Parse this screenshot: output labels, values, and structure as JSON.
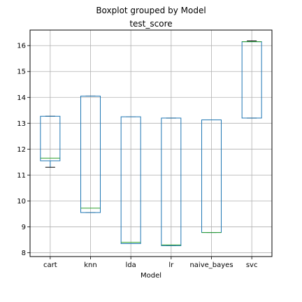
{
  "chart_data": {
    "type": "boxplot",
    "suptitle": "Boxplot grouped by Model",
    "title": "test_score",
    "xlabel": "Model",
    "ylabel": "",
    "ylim": [
      7.85,
      16.6
    ],
    "yticks": [
      8,
      9,
      10,
      11,
      12,
      13,
      14,
      15,
      16
    ],
    "grid": true,
    "colors": {
      "box": "#1f77b4",
      "median": "#2ca02c",
      "whisker": "#000000",
      "grid": "#b0b0b0"
    },
    "categories": [
      "cart",
      "knn",
      "lda",
      "lr",
      "naive_bayes",
      "svc"
    ],
    "boxes": [
      {
        "label": "cart",
        "min": 11.3,
        "q1": 11.55,
        "median": 11.65,
        "q3": 13.27,
        "max": 13.27
      },
      {
        "label": "knn",
        "min": 9.55,
        "q1": 9.55,
        "median": 9.72,
        "q3": 14.05,
        "max": 14.05
      },
      {
        "label": "lda",
        "min": 8.35,
        "q1": 8.35,
        "median": 8.4,
        "q3": 13.25,
        "max": 13.25
      },
      {
        "label": "lr",
        "min": 8.27,
        "q1": 8.27,
        "median": 8.3,
        "q3": 13.2,
        "max": 13.2
      },
      {
        "label": "naive_bayes",
        "min": 8.78,
        "q1": 8.78,
        "median": 8.78,
        "q3": 13.13,
        "max": 13.13
      },
      {
        "label": "svc",
        "min": 13.2,
        "q1": 13.2,
        "median": 16.15,
        "q3": 16.15,
        "max": 16.18
      }
    ]
  }
}
